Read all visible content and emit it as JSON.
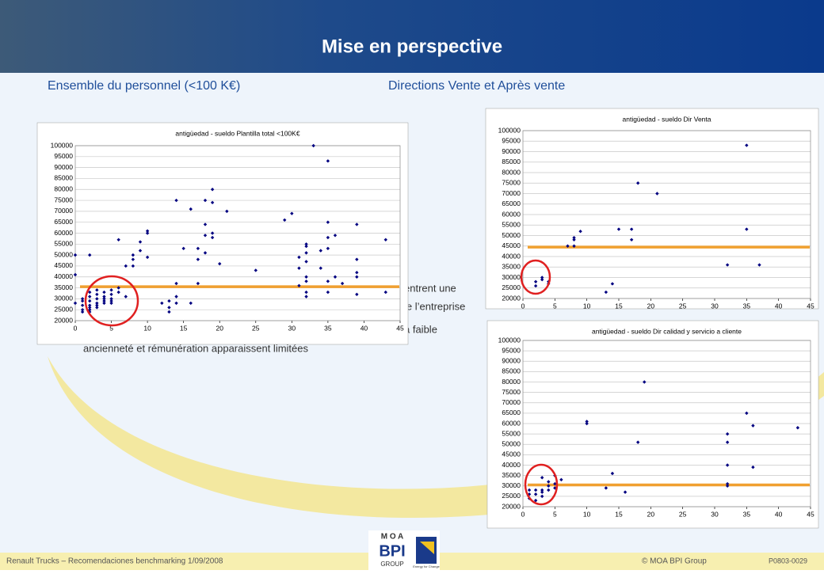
{
  "header": {
    "title": "Mise en perspective"
  },
  "subtitles": [
    "Ensemble du personnel (<100 K€)",
    "Directions Vente et Après vente"
  ],
  "background_text": [
    "entrent une",
    "le l’entreprise",
    "à faible",
    "ancienneté et rémunération apparaissent limitées"
  ],
  "footer": {
    "left": "Renault Trucks – Recomendaciones benchmarking 1/09/2008",
    "copyright": "© MOA BPI Group",
    "code": "P0803-0029"
  },
  "logo": {
    "top": "M O A",
    "middle": "BPI",
    "bottom": "GROUP",
    "tagline": "Energy for Change"
  },
  "chart_data": [
    {
      "type": "scatter",
      "title": "antigüedad - sueldo Plantilla total <100K€",
      "color": "#000080",
      "line_color": "#f0a030",
      "hline": 35500,
      "xlim": [
        0,
        45
      ],
      "xticks": [
        0,
        5,
        10,
        15,
        20,
        25,
        30,
        35,
        40,
        45
      ],
      "ylim": [
        20000,
        100000
      ],
      "yticks": [
        20000,
        25000,
        30000,
        35000,
        40000,
        45000,
        50000,
        55000,
        60000,
        65000,
        70000,
        75000,
        80000,
        85000,
        90000,
        95000,
        100000
      ],
      "x": [
        0,
        0,
        0,
        1,
        1,
        1,
        1,
        1,
        2,
        2,
        2,
        2,
        2,
        2,
        2,
        2,
        3,
        3,
        3,
        3,
        3,
        3,
        4,
        4,
        4,
        4,
        4,
        5,
        5,
        5,
        5,
        5,
        6,
        6,
        6,
        7,
        7,
        8,
        8,
        8,
        9,
        9,
        10,
        10,
        10,
        12,
        13,
        13,
        13,
        14,
        14,
        14,
        14,
        15,
        16,
        16,
        17,
        17,
        17,
        18,
        18,
        18,
        18,
        19,
        19,
        19,
        19,
        20,
        21,
        25,
        29,
        30,
        31,
        31,
        31,
        32,
        32,
        32,
        32,
        32,
        32,
        32,
        32,
        33,
        34,
        34,
        35,
        35,
        35,
        35,
        35,
        35,
        36,
        36,
        37,
        39,
        39,
        39,
        39,
        39,
        43,
        43
      ],
      "values": [
        50000,
        41000,
        28000,
        30000,
        27000,
        25000,
        24000,
        29000,
        50000,
        33000,
        31000,
        29000,
        27000,
        26000,
        25000,
        24000,
        34000,
        32000,
        30000,
        28000,
        27000,
        26000,
        33000,
        31000,
        30000,
        29000,
        28000,
        34000,
        32000,
        30000,
        29000,
        28000,
        35000,
        33000,
        57000,
        31000,
        45000,
        45000,
        48000,
        50000,
        52000,
        56000,
        60000,
        61000,
        49000,
        28000,
        26000,
        24000,
        29000,
        75000,
        37000,
        31000,
        28000,
        53000,
        71000,
        28000,
        48000,
        53000,
        37000,
        75000,
        64000,
        59000,
        51000,
        80000,
        74000,
        58000,
        60000,
        46000,
        70000,
        43000,
        66000,
        69000,
        49000,
        44000,
        36000,
        55000,
        54000,
        51000,
        47000,
        40000,
        38000,
        33000,
        31000,
        100000,
        52000,
        44000,
        93000,
        65000,
        58000,
        53000,
        38000,
        33000,
        59000,
        40000,
        37000,
        64000,
        48000,
        42000,
        40000,
        32000,
        57000,
        33000
      ]
    },
    {
      "type": "scatter",
      "title": "antigüedad - sueldo Dir Venta",
      "color": "#000080",
      "line_color": "#f0a030",
      "hline": 44500,
      "xlim": [
        0,
        45
      ],
      "xticks": [
        0,
        5,
        10,
        15,
        20,
        25,
        30,
        35,
        40,
        45
      ],
      "ylim": [
        20000,
        100000
      ],
      "yticks": [
        20000,
        25000,
        30000,
        35000,
        40000,
        45000,
        50000,
        55000,
        60000,
        65000,
        70000,
        75000,
        80000,
        85000,
        90000,
        95000,
        100000
      ],
      "x": [
        2,
        2,
        3,
        3,
        4,
        4,
        7,
        8,
        8,
        8,
        9,
        13,
        14,
        15,
        17,
        17,
        18,
        21,
        32,
        35,
        35,
        37
      ],
      "values": [
        26000,
        28000,
        29000,
        30000,
        27000,
        28000,
        45000,
        48000,
        49000,
        45000,
        52000,
        23000,
        27000,
        53000,
        53000,
        48000,
        75000,
        70000,
        36000,
        93000,
        53000,
        36000
      ]
    },
    {
      "type": "scatter",
      "title": "antigüedad - sueldo Dir calidad y servicio a cliente",
      "color": "#000080",
      "line_color": "#f0a030",
      "hline": 30500,
      "xlim": [
        0,
        45
      ],
      "xticks": [
        0,
        5,
        10,
        15,
        20,
        25,
        30,
        35,
        40,
        45
      ],
      "ylim": [
        20000,
        100000
      ],
      "yticks": [
        20000,
        25000,
        30000,
        35000,
        40000,
        45000,
        50000,
        55000,
        60000,
        65000,
        70000,
        75000,
        80000,
        85000,
        90000,
        95000,
        100000
      ],
      "x": [
        1,
        1,
        1,
        2,
        2,
        2,
        3,
        3,
        3,
        3,
        4,
        4,
        4,
        5,
        5,
        5,
        6,
        10,
        10,
        13,
        14,
        16,
        18,
        19,
        32,
        32,
        32,
        32,
        32,
        35,
        36,
        36,
        43
      ],
      "values": [
        24000,
        26000,
        28000,
        23000,
        26000,
        28000,
        25000,
        27000,
        28000,
        34000,
        28000,
        30000,
        32000,
        29000,
        31000,
        35000,
        33000,
        61000,
        60000,
        29000,
        36000,
        27000,
        51000,
        80000,
        55000,
        51000,
        40000,
        31000,
        30000,
        65000,
        59000,
        39000,
        58000
      ]
    }
  ]
}
